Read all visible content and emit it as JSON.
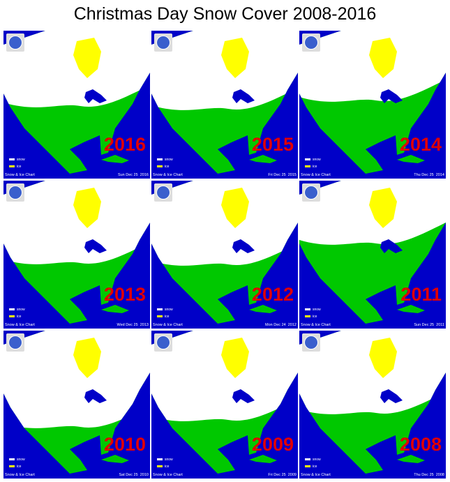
{
  "title": "Christmas Day Snow Cover 2008-2016",
  "colors": {
    "water": "#0000c8",
    "land": "#00c800",
    "snow": "#ffffff",
    "ice": "#ffff00",
    "year_label": "#e00000"
  },
  "legend": {
    "snow": "snow",
    "ice": "ice"
  },
  "chart_label": "Snow & Ice Chart",
  "panels": [
    {
      "year": "2016",
      "date": "Sun Dec 25",
      "date_year": "2016"
    },
    {
      "year": "2015",
      "date": "Fri Dec 25",
      "date_year": "2015"
    },
    {
      "year": "2014",
      "date": "Thu Dec 25",
      "date_year": "2014"
    },
    {
      "year": "2013",
      "date": "Wed Dec 25",
      "date_year": "2013"
    },
    {
      "year": "2012",
      "date": "Mon Dec 24",
      "date_year": "2012"
    },
    {
      "year": "2011",
      "date": "Sun Dec 25",
      "date_year": "2011"
    },
    {
      "year": "2010",
      "date": "Sat Dec 25",
      "date_year": "2010"
    },
    {
      "year": "2009",
      "date": "Fri Dec 25",
      "date_year": "2009"
    },
    {
      "year": "2008",
      "date": "Thu Dec 25",
      "date_year": "2008"
    }
  ]
}
